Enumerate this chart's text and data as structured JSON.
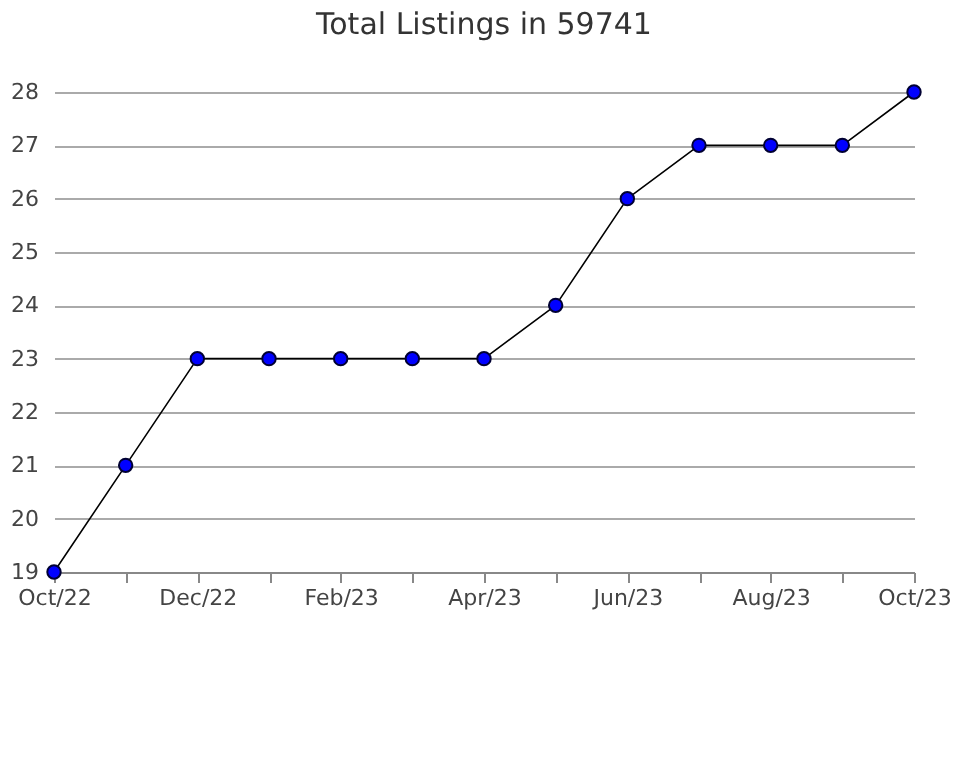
{
  "chart_data": {
    "type": "line",
    "title": "Total Listings in 59741",
    "categories": [
      "Oct/22",
      null,
      "Dec/22",
      null,
      "Feb/23",
      null,
      "Apr/23",
      null,
      "Jun/23",
      null,
      "Aug/23",
      null,
      "Oct/23"
    ],
    "series": [
      {
        "color": "#0000ff",
        "values": [
          19,
          21,
          23,
          23,
          23,
          23,
          23,
          24,
          26,
          27,
          27,
          27,
          28
        ]
      }
    ],
    "ylim": [
      19,
      28
    ],
    "yticks": [
      19,
      20,
      21,
      22,
      23,
      24,
      25,
      26,
      27,
      28
    ],
    "grid": "y",
    "marker": "circle",
    "line_style": "solid"
  }
}
